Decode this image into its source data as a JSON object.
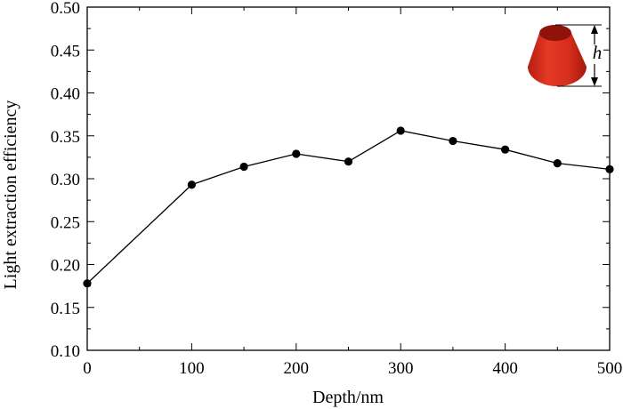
{
  "chart_data": {
    "type": "line",
    "xlabel": "Depth/nm",
    "ylabel": "Light extraction efficiency",
    "xlim": [
      0,
      500
    ],
    "ylim": [
      0.1,
      0.5
    ],
    "x_ticks": [
      0,
      100,
      200,
      300,
      400,
      500
    ],
    "x_tick_labels": [
      "0",
      "100",
      "200",
      "300",
      "400",
      "500"
    ],
    "y_ticks": [
      0.1,
      0.15,
      0.2,
      0.25,
      0.3,
      0.35,
      0.4,
      0.45,
      0.5
    ],
    "y_tick_labels": [
      "0.10",
      "0.15",
      "0.20",
      "0.25",
      "0.30",
      "0.35",
      "0.40",
      "0.45",
      "0.50"
    ],
    "grid": false,
    "series": [
      {
        "x": [
          0,
          100,
          150,
          200,
          250,
          300,
          350,
          400,
          450,
          500
        ],
        "y": [
          0.178,
          0.293,
          0.314,
          0.329,
          0.32,
          0.356,
          0.344,
          0.334,
          0.318,
          0.311
        ]
      }
    ],
    "inset": {
      "label": "h",
      "color": "#d93020"
    }
  }
}
